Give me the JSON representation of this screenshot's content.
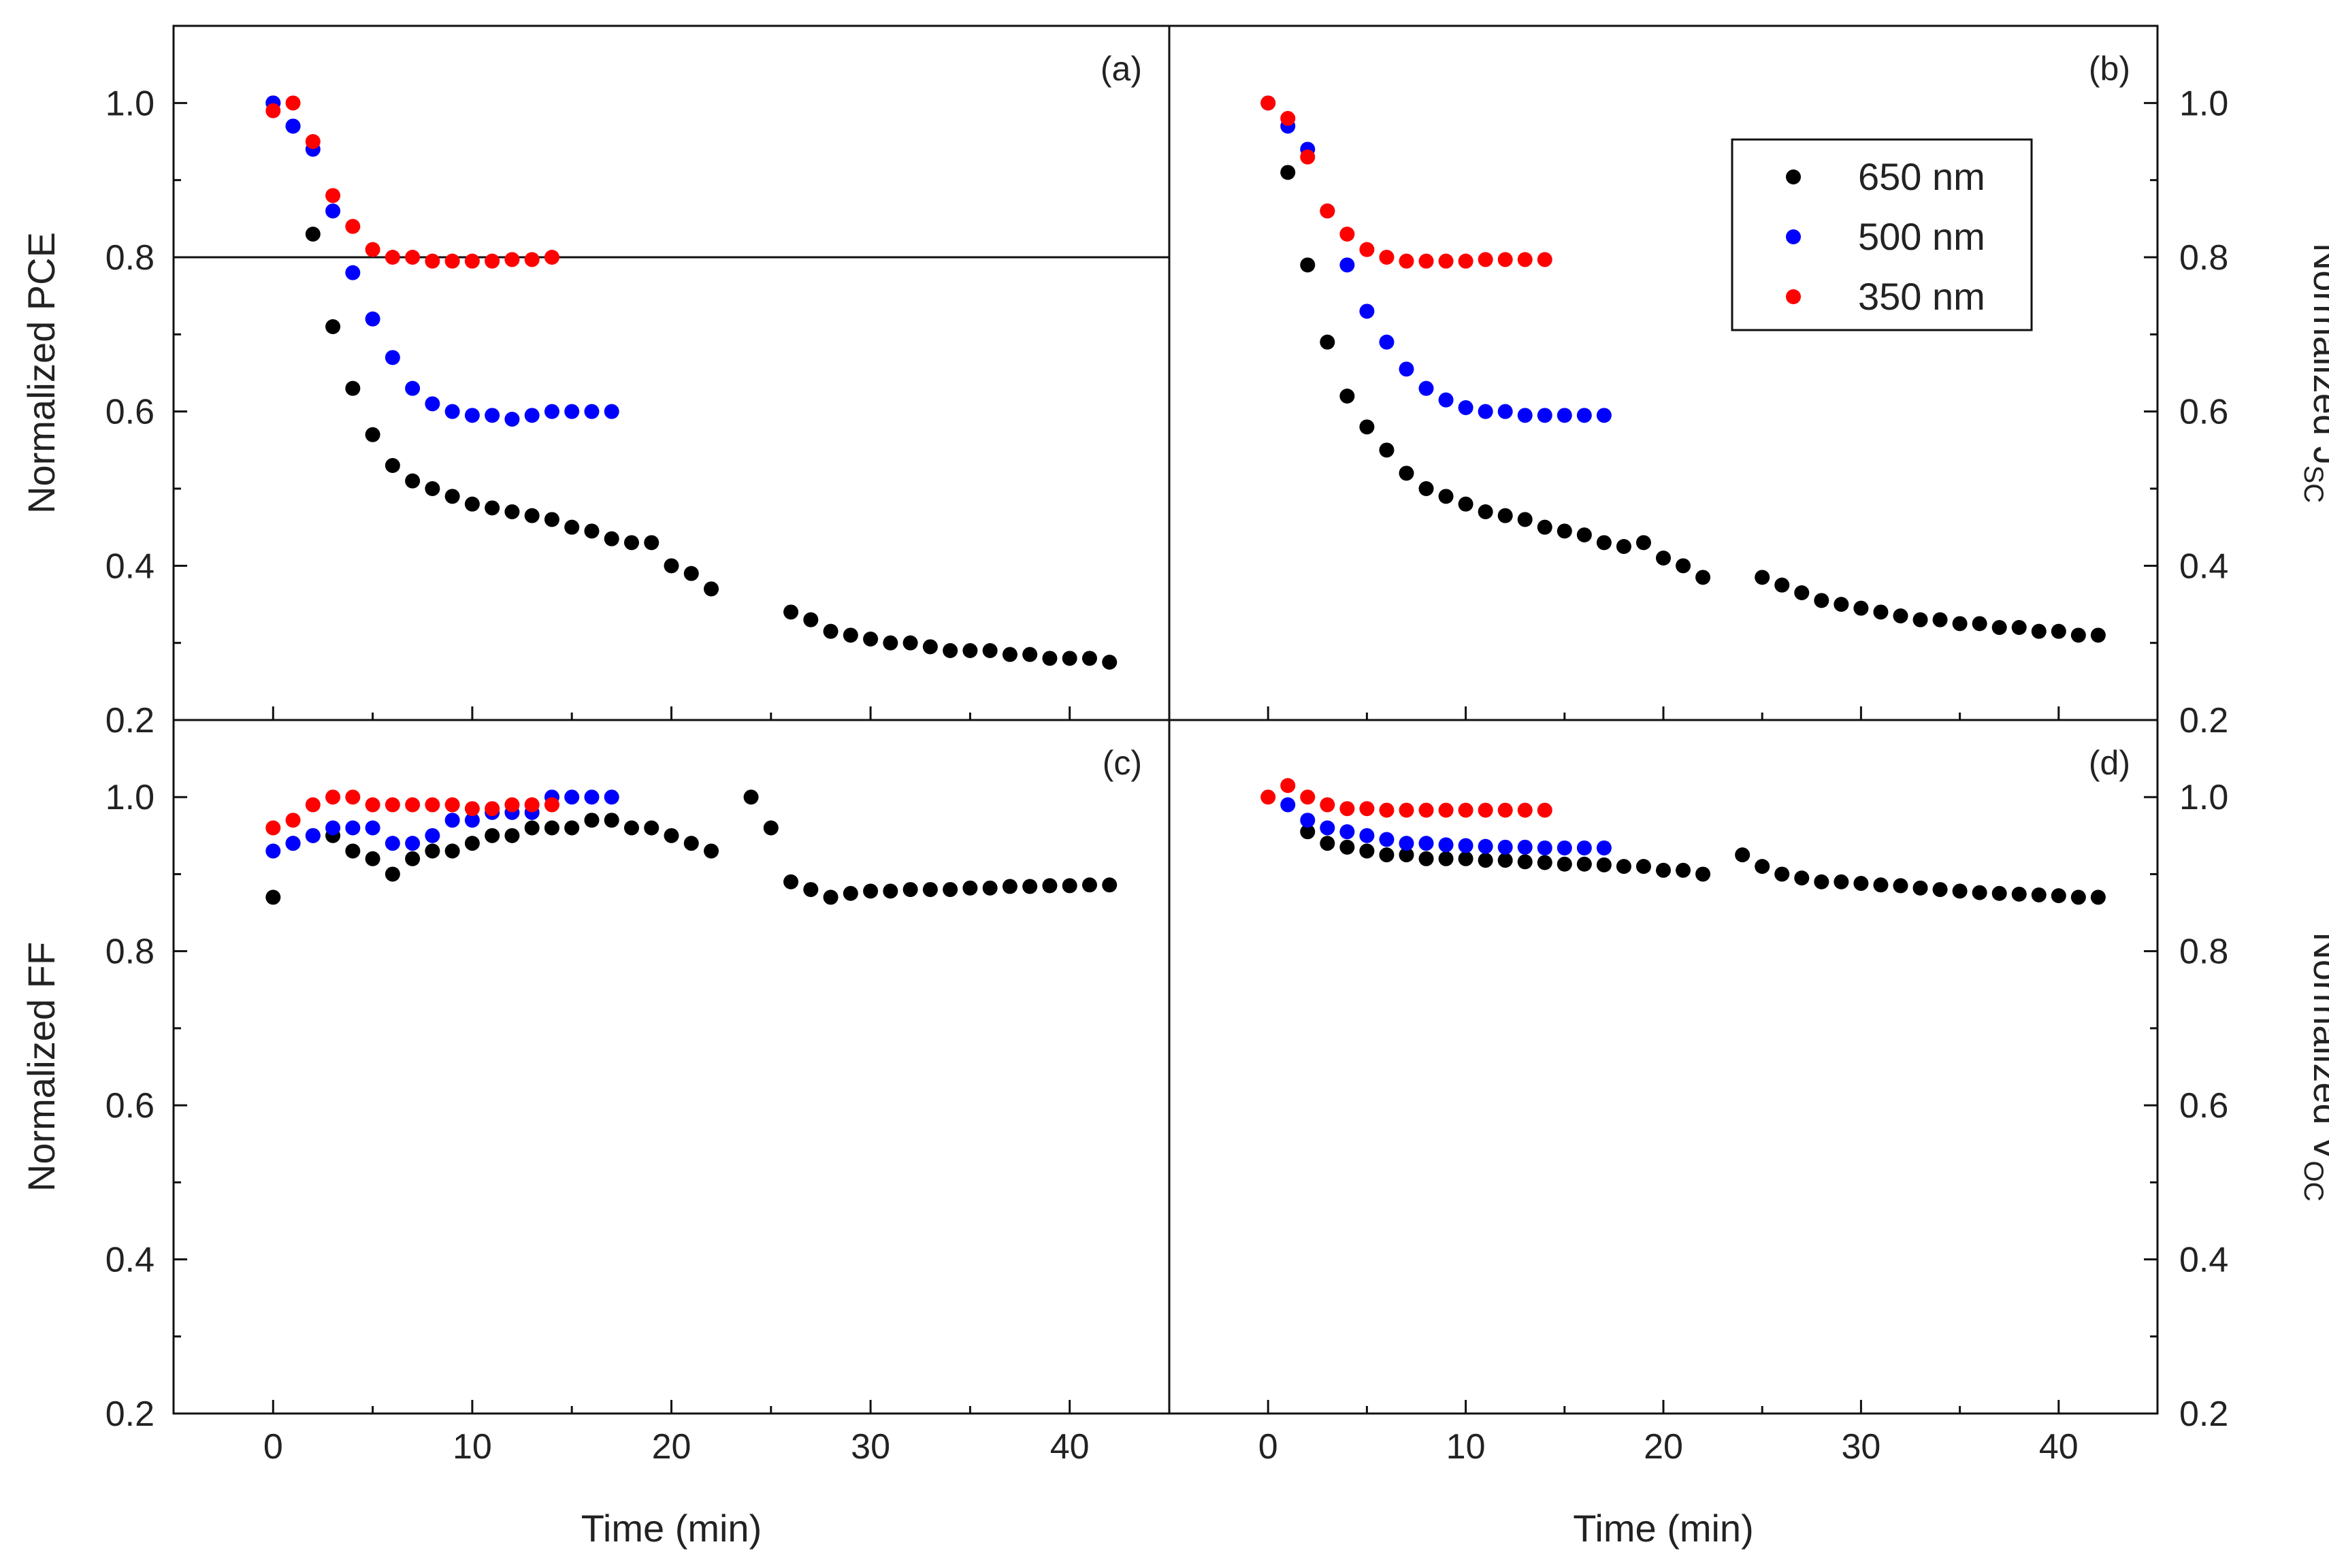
{
  "chart_data": {
    "type": "scatter",
    "panels": [
      {
        "label": "(a)",
        "ylabel": "Normalized PCE",
        "ylabel_sub": "",
        "ylabel_side": "left",
        "xlabel": "",
        "xlim": [
          -5,
          45
        ],
        "ylim": [
          0.2,
          1.1
        ],
        "yticks": [
          "0.2",
          "0.4",
          "0.6",
          "0.8",
          "1.0"
        ],
        "hline": 0.8,
        "series": [
          {
            "name": "650 nm",
            "color": "#000000",
            "x": [
              0,
              1,
              2,
              3,
              4,
              5,
              6,
              7,
              8,
              9,
              10,
              11,
              12,
              13,
              14,
              15,
              16,
              17,
              18,
              19,
              20,
              21,
              22,
              26,
              27,
              28,
              29,
              30,
              31,
              32,
              33,
              34,
              35,
              36,
              37,
              38,
              39,
              40,
              41,
              42
            ],
            "y": [
              1.0,
              0.97,
              0.83,
              0.71,
              0.63,
              0.57,
              0.53,
              0.51,
              0.5,
              0.49,
              0.48,
              0.475,
              0.47,
              0.465,
              0.46,
              0.45,
              0.445,
              0.435,
              0.43,
              0.43,
              0.4,
              0.39,
              0.37,
              0.34,
              0.33,
              0.315,
              0.31,
              0.305,
              0.3,
              0.3,
              0.295,
              0.29,
              0.29,
              0.29,
              0.285,
              0.285,
              0.28,
              0.28,
              0.28,
              0.275
            ]
          },
          {
            "name": "500 nm",
            "color": "#0000ff",
            "x": [
              0,
              1,
              2,
              3,
              4,
              5,
              6,
              7,
              8,
              9,
              10,
              11,
              12,
              13,
              14,
              15,
              16,
              17
            ],
            "y": [
              1.0,
              0.97,
              0.94,
              0.86,
              0.78,
              0.72,
              0.67,
              0.63,
              0.61,
              0.6,
              0.595,
              0.595,
              0.59,
              0.595,
              0.6,
              0.6,
              0.6,
              0.6
            ]
          },
          {
            "name": "350 nm",
            "color": "#ff0000",
            "x": [
              0,
              1,
              2,
              3,
              4,
              5,
              6,
              7,
              8,
              9,
              10,
              11,
              12,
              13,
              14
            ],
            "y": [
              0.99,
              1.0,
              0.95,
              0.88,
              0.84,
              0.81,
              0.8,
              0.8,
              0.795,
              0.795,
              0.795,
              0.795,
              0.797,
              0.797,
              0.8
            ]
          }
        ]
      },
      {
        "label": "(b)",
        "ylabel": "Normalized J",
        "ylabel_sub": "SC",
        "ylabel_side": "right",
        "xlabel": "",
        "xlim": [
          -5,
          45
        ],
        "ylim": [
          0.2,
          1.1
        ],
        "yticks": [
          "0.2",
          "0.4",
          "0.6",
          "0.8",
          "1.0"
        ],
        "series": [
          {
            "name": "650 nm",
            "color": "#000000",
            "x": [
              1,
              2,
              3,
              4,
              5,
              6,
              7,
              8,
              9,
              10,
              11,
              12,
              13,
              14,
              15,
              16,
              17,
              18,
              19,
              20,
              21,
              22,
              25,
              26,
              27,
              28,
              29,
              30,
              31,
              32,
              33,
              34,
              35,
              36,
              37,
              38,
              39,
              40,
              41,
              42
            ],
            "y": [
              0.91,
              0.79,
              0.69,
              0.62,
              0.58,
              0.55,
              0.52,
              0.5,
              0.49,
              0.48,
              0.47,
              0.465,
              0.46,
              0.45,
              0.445,
              0.44,
              0.43,
              0.425,
              0.43,
              0.41,
              0.4,
              0.385,
              0.385,
              0.375,
              0.365,
              0.355,
              0.35,
              0.345,
              0.34,
              0.335,
              0.33,
              0.33,
              0.325,
              0.325,
              0.32,
              0.32,
              0.315,
              0.315,
              0.31,
              0.31
            ]
          },
          {
            "name": "500 nm",
            "color": "#0000ff",
            "x": [
              0,
              1,
              2,
              3,
              4,
              5,
              6,
              7,
              8,
              9,
              10,
              11,
              12,
              13,
              14,
              15,
              16,
              17
            ],
            "y": [
              1.0,
              0.97,
              0.94,
              0.86,
              0.79,
              0.73,
              0.69,
              0.655,
              0.63,
              0.615,
              0.605,
              0.6,
              0.6,
              0.595,
              0.595,
              0.595,
              0.595,
              0.595
            ]
          },
          {
            "name": "350 nm",
            "color": "#ff0000",
            "x": [
              0,
              1,
              2,
              3,
              4,
              5,
              6,
              7,
              8,
              9,
              10,
              11,
              12,
              13,
              14
            ],
            "y": [
              1.0,
              0.98,
              0.93,
              0.86,
              0.83,
              0.81,
              0.8,
              0.795,
              0.795,
              0.795,
              0.795,
              0.797,
              0.797,
              0.797,
              0.797
            ]
          }
        ]
      },
      {
        "label": "(c)",
        "ylabel": "Normalized FF",
        "ylabel_sub": "",
        "ylabel_side": "left",
        "xlabel": "Time (min)",
        "xlim": [
          -5,
          45
        ],
        "ylim": [
          0.2,
          1.1
        ],
        "yticks": [
          "0.2",
          "0.4",
          "0.6",
          "0.8",
          "1.0"
        ],
        "series": [
          {
            "name": "650 nm",
            "color": "#000000",
            "x": [
              0,
              1,
              2,
              3,
              4,
              5,
              6,
              7,
              8,
              9,
              10,
              11,
              12,
              13,
              14,
              15,
              16,
              17,
              18,
              19,
              20,
              21,
              22,
              24,
              25,
              26,
              27,
              28,
              29,
              30,
              31,
              32,
              33,
              34,
              35,
              36,
              37,
              38,
              39,
              40,
              41,
              42
            ],
            "y": [
              0.87,
              0.94,
              0.95,
              0.95,
              0.93,
              0.92,
              0.9,
              0.92,
              0.93,
              0.93,
              0.94,
              0.95,
              0.95,
              0.96,
              0.96,
              0.96,
              0.97,
              0.97,
              0.96,
              0.96,
              0.95,
              0.94,
              0.93,
              1.0,
              0.96,
              0.89,
              0.88,
              0.87,
              0.875,
              0.878,
              0.878,
              0.88,
              0.88,
              0.88,
              0.882,
              0.882,
              0.884,
              0.884,
              0.885,
              0.885,
              0.886,
              0.886
            ]
          },
          {
            "name": "500 nm",
            "color": "#0000ff",
            "x": [
              0,
              1,
              2,
              3,
              4,
              5,
              6,
              7,
              8,
              9,
              10,
              11,
              12,
              13,
              14,
              15,
              16,
              17
            ],
            "y": [
              0.93,
              0.94,
              0.95,
              0.96,
              0.96,
              0.96,
              0.94,
              0.94,
              0.95,
              0.97,
              0.97,
              0.98,
              0.98,
              0.98,
              1.0,
              1.0,
              1.0,
              1.0
            ]
          },
          {
            "name": "350 nm",
            "color": "#ff0000",
            "x": [
              0,
              1,
              2,
              3,
              4,
              5,
              6,
              7,
              8,
              9,
              10,
              11,
              12,
              13,
              14
            ],
            "y": [
              0.96,
              0.97,
              0.99,
              1.0,
              1.0,
              0.99,
              0.99,
              0.99,
              0.99,
              0.99,
              0.985,
              0.985,
              0.99,
              0.99,
              0.99
            ]
          }
        ]
      },
      {
        "label": "(d)",
        "ylabel": "Normalized V",
        "ylabel_sub": "OC",
        "ylabel_side": "right",
        "xlabel": "Time (min)",
        "xlim": [
          -5,
          45
        ],
        "ylim": [
          0.2,
          1.1
        ],
        "yticks": [
          "0.2",
          "0.4",
          "0.6",
          "0.8",
          "1.0"
        ],
        "series": [
          {
            "name": "650 nm",
            "color": "#000000",
            "x": [
              2,
              3,
              4,
              5,
              6,
              7,
              8,
              9,
              10,
              11,
              12,
              13,
              14,
              15,
              16,
              17,
              18,
              19,
              20,
              21,
              22,
              24,
              25,
              26,
              27,
              28,
              29,
              30,
              31,
              32,
              33,
              34,
              35,
              36,
              37,
              38,
              39,
              40,
              41,
              42
            ],
            "y": [
              0.955,
              0.94,
              0.935,
              0.93,
              0.925,
              0.925,
              0.92,
              0.92,
              0.92,
              0.918,
              0.918,
              0.916,
              0.915,
              0.913,
              0.913,
              0.912,
              0.91,
              0.91,
              0.905,
              0.905,
              0.9,
              0.925,
              0.91,
              0.9,
              0.895,
              0.89,
              0.89,
              0.888,
              0.886,
              0.885,
              0.882,
              0.88,
              0.878,
              0.876,
              0.875,
              0.874,
              0.873,
              0.872,
              0.87,
              0.87
            ]
          },
          {
            "name": "500 nm",
            "color": "#0000ff",
            "x": [
              1,
              2,
              3,
              4,
              5,
              6,
              7,
              8,
              9,
              10,
              11,
              12,
              13,
              14,
              15,
              16,
              17
            ],
            "y": [
              0.99,
              0.97,
              0.96,
              0.955,
              0.95,
              0.945,
              0.94,
              0.94,
              0.938,
              0.937,
              0.936,
              0.935,
              0.935,
              0.934,
              0.934,
              0.934,
              0.934
            ]
          },
          {
            "name": "350 nm",
            "color": "#ff0000",
            "x": [
              0,
              1,
              2,
              3,
              4,
              5,
              6,
              7,
              8,
              9,
              10,
              11,
              12,
              13,
              14
            ],
            "y": [
              1.0,
              1.015,
              1.0,
              0.99,
              0.985,
              0.985,
              0.983,
              0.983,
              0.983,
              0.983,
              0.983,
              0.983,
              0.983,
              0.983,
              0.983
            ]
          }
        ]
      }
    ],
    "xticks": [
      "0",
      "10",
      "20",
      "30",
      "40"
    ],
    "legend": {
      "panel": "(b)",
      "placement": "top-right",
      "entries": [
        {
          "name": "650 nm",
          "color": "#000000"
        },
        {
          "name": "500 nm",
          "color": "#0000ff"
        },
        {
          "name": "350 nm",
          "color": "#ff0000"
        }
      ]
    }
  }
}
